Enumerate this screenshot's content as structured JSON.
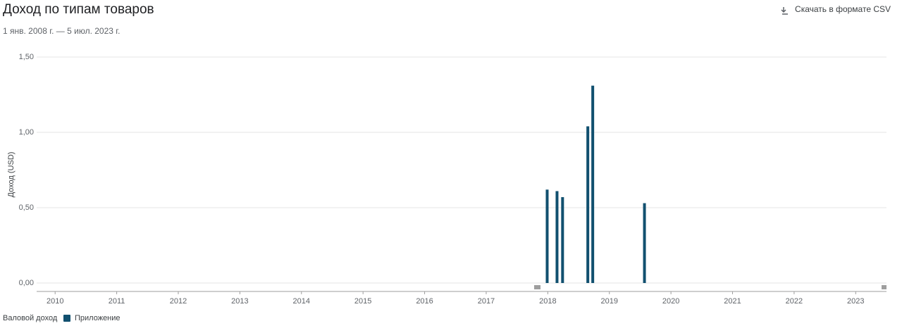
{
  "chart_data": {
    "type": "bar",
    "title": "Доход по типам товаров",
    "subtitle": "1 янв. 2008 г. — 5 июл. 2023 г.",
    "download_label": "Скачать в формате CSV",
    "y_label": "Доход (USD)",
    "legend_title": "Валовой доход",
    "x": [
      2017.99,
      2018.15,
      2018.24,
      2018.65,
      2018.73,
      2019.57
    ],
    "series": [
      {
        "name": "Приложение",
        "color": "#11506f",
        "values": [
          0.62,
          0.61,
          0.57,
          1.04,
          1.31,
          0.53
        ]
      }
    ],
    "xlim": [
      2009.7,
      2023.5
    ],
    "xticks": [
      2010,
      2011,
      2012,
      2013,
      2014,
      2015,
      2016,
      2017,
      2018,
      2019,
      2020,
      2021,
      2022,
      2023
    ],
    "ylim": [
      0,
      1.5
    ],
    "yticks": [
      {
        "value": 0,
        "label": "0,00"
      },
      {
        "value": 0.5,
        "label": "0,50"
      },
      {
        "value": 1,
        "label": "1,00"
      },
      {
        "value": 1.5,
        "label": "1,50"
      }
    ],
    "grid": true
  }
}
